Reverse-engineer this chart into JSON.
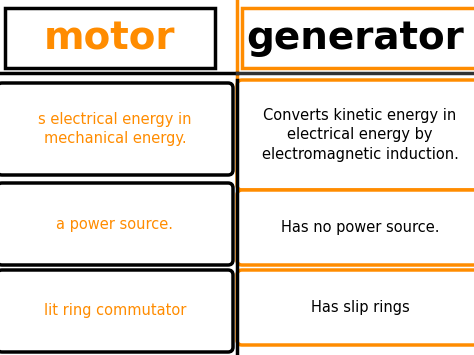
{
  "title_left": "motor",
  "title_right": "generator",
  "title_left_color": "#FF8C00",
  "title_right_color": "#000000",
  "title_left_border": "#000000",
  "title_right_border": "#FF8C00",
  "left_items": [
    "s electrical energy in\nmechanical energy.",
    "a power source.",
    "lit ring commutator"
  ],
  "right_items": [
    "Converts kinetic energy in\nelectrical energy by\nelectromagnetic induction.",
    "Has no power source.",
    "Has slip rings"
  ],
  "left_text_color": "#FF8C00",
  "right_text_color": "#000000",
  "left_box_border": "#000000",
  "right_box_border": "#FF8C00",
  "divider_color": "#000000",
  "divider_top_color": "#FF8C00",
  "background_color": "#FFFFFF",
  "figsize": [
    4.74,
    3.55
  ],
  "dpi": 100
}
